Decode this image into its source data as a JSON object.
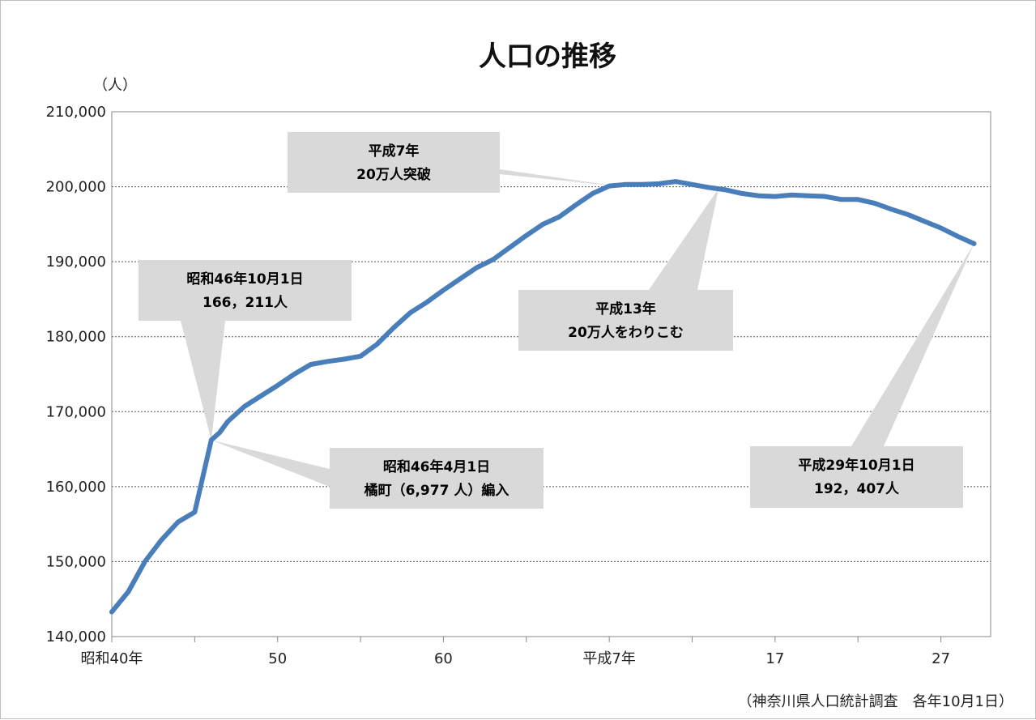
{
  "chart_data": {
    "type": "line",
    "title": "人口の推移",
    "ylabel": "（人）",
    "source": "（神奈川県人口統計調査　各年10月1日）",
    "ylim": [
      140000,
      210000
    ],
    "yticks": [
      140000,
      150000,
      160000,
      170000,
      180000,
      190000,
      200000,
      210000
    ],
    "ytick_labels": [
      "140,000",
      "150,000",
      "160,000",
      "170,000",
      "180,000",
      "190,000",
      "200,000",
      "210,000"
    ],
    "xlim": [
      1965,
      2018
    ],
    "xticks": [
      {
        "year": 1965,
        "label": "昭和40年"
      },
      {
        "year": 1975,
        "label": "50"
      },
      {
        "year": 1985,
        "label": "60"
      },
      {
        "year": 1995,
        "label": "平成7年"
      },
      {
        "year": 2005,
        "label": "17"
      },
      {
        "year": 2015,
        "label": "27"
      }
    ],
    "grid": true,
    "line_color": "#4a7ebb",
    "series": [
      {
        "x": [
          1965,
          1966,
          1967,
          1968,
          1969,
          1970,
          1971,
          1971.5,
          1972,
          1973,
          1974,
          1975,
          1976,
          1977,
          1978,
          1979,
          1980,
          1981,
          1982,
          1983,
          1984,
          1985,
          1986,
          1987,
          1988,
          1989,
          1990,
          1991,
          1992,
          1993,
          1994,
          1995,
          1996,
          1997,
          1998,
          1999,
          2000,
          2001,
          2002,
          2003,
          2004,
          2005,
          2006,
          2007,
          2008,
          2009,
          2010,
          2011,
          2012,
          2013,
          2014,
          2015,
          2016,
          2017
        ],
        "y": [
          143300,
          146000,
          150000,
          152900,
          155300,
          156600,
          166211,
          167200,
          168700,
          170700,
          172100,
          173500,
          175000,
          176300,
          176700,
          177000,
          177400,
          179000,
          181200,
          183200,
          184600,
          186200,
          187700,
          189200,
          190300,
          191900,
          193500,
          195000,
          196000,
          197600,
          199100,
          200100,
          200300,
          200300,
          200400,
          200700,
          200300,
          199900,
          199600,
          199100,
          198800,
          198700,
          198900,
          198800,
          198700,
          198300,
          198300,
          197800,
          197000,
          196300,
          195400,
          194500,
          193400,
          192407
        ]
      }
    ],
    "annotations": [
      {
        "line1": "平成7年",
        "line2": "20万人突破",
        "point_year": 1995.4,
        "point_value": 200100
      },
      {
        "line1": "昭和46年10月1日",
        "line2": "166，211人",
        "point_year": 1971,
        "point_value": 166211
      },
      {
        "line1": "平成13年",
        "line2": "20万人をわりこむ",
        "point_year": 2001.6,
        "point_value": 199800
      },
      {
        "line1": "昭和46年4月1日",
        "line2": "橘町（6,977 人）編入",
        "point_year": 1971,
        "point_value": 166211
      },
      {
        "line1": "平成29年10月1日",
        "line2": "192，407人",
        "point_year": 2017,
        "point_value": 192407
      }
    ]
  }
}
